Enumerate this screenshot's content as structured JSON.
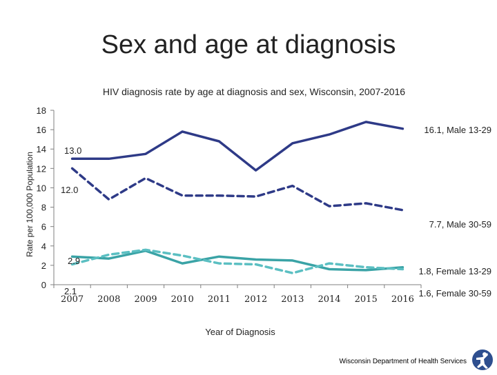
{
  "slide": {
    "title": "Sex and age at diagnosis",
    "footer": "Wisconsin Department of Health Services"
  },
  "colors": {
    "male": "#2e3a87",
    "female": "#3aa3a6",
    "axis": "#7f7f7f",
    "text": "#222222"
  },
  "chart_data": {
    "type": "line",
    "title": "HIV diagnosis rate by age at diagnosis and sex, Wisconsin, 2007-2016",
    "xlabel": "Year of Diagnosis",
    "ylabel": "Rate per 100,000 Population",
    "ylim": [
      0,
      18
    ],
    "yticks": [
      0,
      2,
      4,
      6,
      8,
      10,
      12,
      14,
      16,
      18
    ],
    "x": [
      "2007",
      "2008",
      "2009",
      "2010",
      "2011",
      "2012",
      "2013",
      "2014",
      "2015",
      "2016"
    ],
    "grid": false,
    "legend": "none",
    "series": [
      {
        "name": "Male 13-29",
        "dash": false,
        "color": "#2e3a87",
        "values": [
          13.0,
          13.0,
          13.5,
          15.8,
          14.8,
          11.8,
          14.6,
          15.5,
          16.8,
          16.1
        ],
        "start_label": "13.0",
        "end_label": "16.1, Male 13-29"
      },
      {
        "name": "Male 30-59",
        "dash": true,
        "color": "#2e3a87",
        "values": [
          12.0,
          8.8,
          11.0,
          9.2,
          9.2,
          9.1,
          10.2,
          8.1,
          8.4,
          7.7
        ],
        "start_label": "12.0",
        "end_label": "7.7, Male 30-59"
      },
      {
        "name": "Female 13-29",
        "dash": false,
        "color": "#3aa3a6",
        "values": [
          2.9,
          2.7,
          3.5,
          2.2,
          2.9,
          2.6,
          2.5,
          1.6,
          1.5,
          1.8
        ],
        "start_label": "2.9",
        "end_label": "1.8, Female 13-29"
      },
      {
        "name": "Female 30-59",
        "dash": true,
        "color": "#5bbfc2",
        "values": [
          2.1,
          3.1,
          3.6,
          3.0,
          2.2,
          2.1,
          1.2,
          2.2,
          1.8,
          1.6
        ],
        "start_label": "2.1",
        "end_label": "1.6, Female 30-59"
      }
    ]
  }
}
